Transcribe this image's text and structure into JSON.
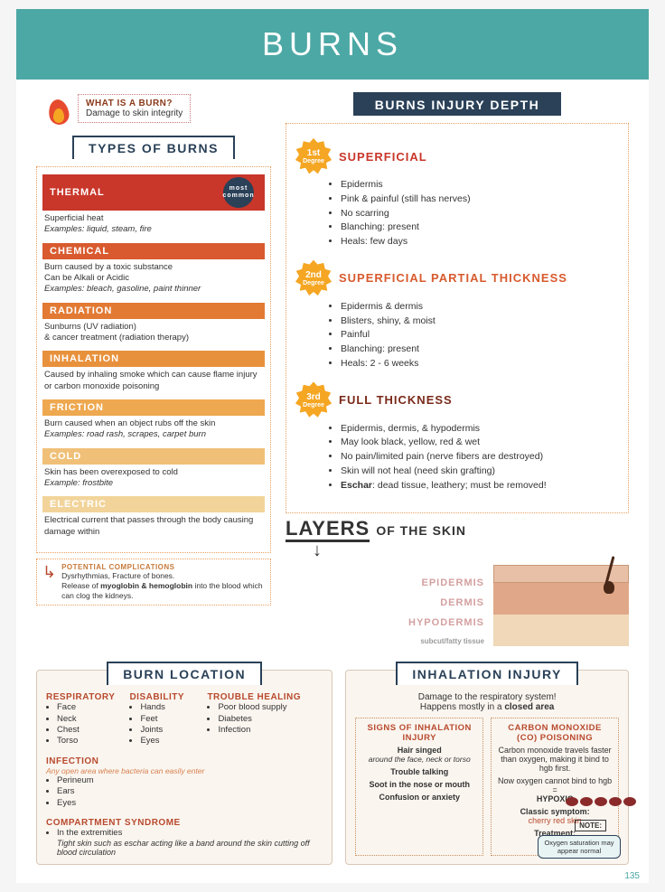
{
  "page_number": "135",
  "banner": "BURNS",
  "what_is": {
    "q": "WHAT IS A BURN?",
    "a": "Damage to skin integrity"
  },
  "types_title": "TYPES OF BURNS",
  "types": [
    {
      "name": "THERMAL",
      "color": "#c9362a",
      "badge": "most common",
      "desc": "Superficial heat",
      "ex": "Examples: liquid, steam, fire"
    },
    {
      "name": "CHEMICAL",
      "color": "#d85a2e",
      "desc": "Burn caused by a toxic substance\nCan be Alkali or Acidic",
      "ex": "Examples: bleach, gasoline, paint thinner"
    },
    {
      "name": "RADIATION",
      "color": "#e27a34",
      "desc": "Sunburns (UV radiation)\n& cancer treatment (radiation therapy)",
      "ex": ""
    },
    {
      "name": "INHALATION",
      "color": "#e8913c",
      "desc": "Caused by inhaling smoke which can cause flame injury or carbon monoxide poisoning",
      "ex": ""
    },
    {
      "name": "FRICTION",
      "color": "#eea850",
      "desc": "Burn caused when an object rubs off the skin",
      "ex": "Examples: road rash, scrapes, carpet burn"
    },
    {
      "name": "COLD",
      "color": "#f0c078",
      "desc": "Skin has been overexposed to cold",
      "ex": "Example: frostbite"
    },
    {
      "name": "ELECTRIC",
      "color": "#f2d49a",
      "desc": "Electrical current that passes through the body causing damage within",
      "ex": ""
    }
  ],
  "complications": {
    "title": "POTENTIAL COMPLICATIONS",
    "text": "Dysrhythmias, Fracture of bones.\nRelease of myoglobin & hemoglobin into the blood which can clog the kidneys."
  },
  "depth_title": "BURNS INJURY DEPTH",
  "degrees": [
    {
      "badge": "1st Degree",
      "label": "SUPERFICIAL",
      "color": "#c9362a",
      "items": [
        "Epidermis",
        "Pink & painful (still has nerves)",
        "No scarring",
        "Blanching: present",
        "Heals: few days"
      ]
    },
    {
      "badge": "2nd Degree",
      "label": "SUPERFICIAL PARTIAL THICKNESS",
      "color": "#d85a2e",
      "items": [
        "Epidermis & dermis",
        "Blisters, shiny, & moist",
        "Painful",
        "Blanching: present",
        "Heals: 2 - 6 weeks"
      ]
    },
    {
      "badge": "3rd Degree",
      "label": "FULL THICKNESS",
      "color": "#7a2a1a",
      "items": [
        "Epidermis, dermis, & hypodermis",
        "May look black, yellow, red & wet",
        "No pain/limited pain (nerve fibers are destroyed)",
        "Skin will not heal (need skin grafting)",
        "Eschar: dead tissue, leathery; must be removed!"
      ]
    }
  ],
  "layers": {
    "title_big": "LAYERS",
    "title_sm": "OF THE SKIN",
    "labels": [
      "EPIDERMIS",
      "DERMIS",
      "HYPODERMIS"
    ],
    "sub": "subcut/fatty tissue",
    "colors": {
      "l1": "#e8c0a8",
      "l2": "#e0a888",
      "l3": "#f0d8b8"
    }
  },
  "location": {
    "title": "BURN LOCATION",
    "groups": [
      {
        "h": "RESPIRATORY",
        "items": [
          "Face",
          "Neck",
          "Chest",
          "Torso"
        ]
      },
      {
        "h": "DISABILITY",
        "items": [
          "Hands",
          "Feet",
          "Joints",
          "Eyes"
        ]
      },
      {
        "h": "TROUBLE HEALING",
        "items": [
          "Poor blood supply",
          "Diabetes",
          "Infection"
        ]
      },
      {
        "h": "INFECTION",
        "note": "Any open area where bacteria can easily enter",
        "items": [
          "Perineum",
          "Ears",
          "Eyes"
        ]
      },
      {
        "h": "COMPARTMENT SYNDROME",
        "items": [
          "In the extremities"
        ],
        "extra": "Tight skin such as eschar acting like a band around the skin cutting off blood circulation"
      }
    ]
  },
  "inhalation": {
    "title": "INHALATION INJURY",
    "sub1": "Damage to the respiratory system!",
    "sub2": "Happens mostly in a closed area",
    "signs": {
      "h": "SIGNS OF INHALATION INJURY",
      "items": [
        {
          "b": "Hair singed",
          "i": "around the face, neck or torso"
        },
        {
          "b": "Trouble talking",
          "i": ""
        },
        {
          "b": "Soot in the nose or mouth",
          "i": ""
        },
        {
          "b": "Confusion or anxiety",
          "i": ""
        }
      ]
    },
    "co": {
      "h": "CARBON MONOXIDE (CO) POISONING",
      "p1": "Carbon monoxide travels faster than oxygen, making it bind to hgb first.",
      "p2": "Now oxygen cannot bind to hgb = HYPOXIC",
      "p3": "Classic symptom: cherry red skin",
      "p4": "Treatment: 100% O2"
    },
    "note_label": "NOTE:",
    "note": "Oxygen saturation may appear normal"
  }
}
